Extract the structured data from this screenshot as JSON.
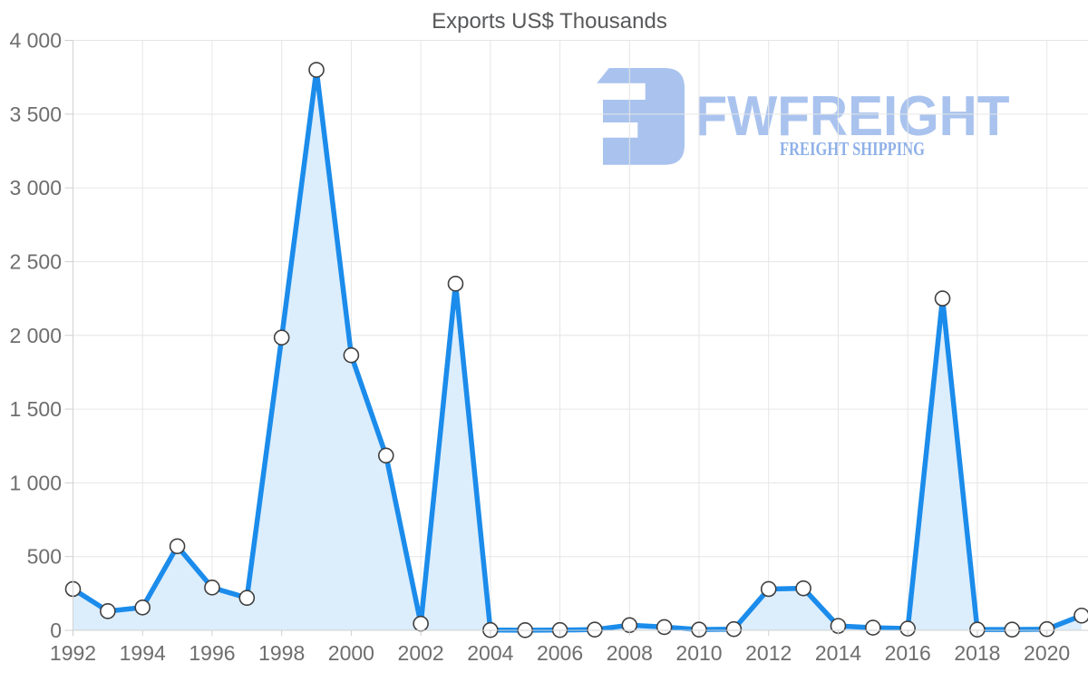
{
  "chart_data": {
    "type": "area",
    "title": "Exports US$ Thousands",
    "xlabel": "",
    "ylabel": "",
    "x": [
      1992,
      1993,
      1994,
      1995,
      1996,
      1997,
      1998,
      1999,
      2000,
      2001,
      2002,
      2003,
      2004,
      2005,
      2006,
      2007,
      2008,
      2009,
      2010,
      2011,
      2012,
      2013,
      2014,
      2015,
      2016,
      2017,
      2018,
      2019,
      2020,
      2021
    ],
    "values": [
      280,
      130,
      155,
      570,
      290,
      220,
      1985,
      3800,
      1865,
      1185,
      45,
      2350,
      2,
      1,
      2,
      5,
      35,
      22,
      5,
      8,
      280,
      285,
      30,
      18,
      12,
      2250,
      5,
      5,
      8,
      100
    ],
    "ylim": [
      0,
      4000
    ],
    "ytick_values": [
      0,
      500,
      1000,
      1500,
      2000,
      2500,
      3000,
      3500,
      4000
    ],
    "ytick_labels": [
      "0",
      "500",
      "1 000",
      "1 500",
      "2 000",
      "2 500",
      "3 000",
      "3 500",
      "4 000"
    ],
    "xtick_values": [
      1992,
      1994,
      1996,
      1998,
      2000,
      2002,
      2004,
      2006,
      2008,
      2010,
      2012,
      2014,
      2016,
      2018,
      2020
    ],
    "xtick_labels": [
      "1992",
      "1994",
      "1996",
      "1998",
      "2000",
      "2002",
      "2004",
      "2006",
      "2008",
      "2010",
      "2012",
      "2014",
      "2016",
      "2018",
      "2020"
    ],
    "grid": "both",
    "legend": "none",
    "line_color": "#1b8ceb",
    "fill_color": "#dcedfc",
    "marker_fill": "#ffffff",
    "marker_stroke": "#3f3f3f",
    "gridline_color": "#e6e6e6",
    "axis_line_color": "#d2d2d2",
    "tick_color": "#cfcfcf"
  },
  "watermark": {
    "brand": "FWFREIGHT",
    "tagline": "FREIGHT SHIPPING",
    "brand_color": "#a9c3ee",
    "tagline_color": "#8fb0e8"
  }
}
